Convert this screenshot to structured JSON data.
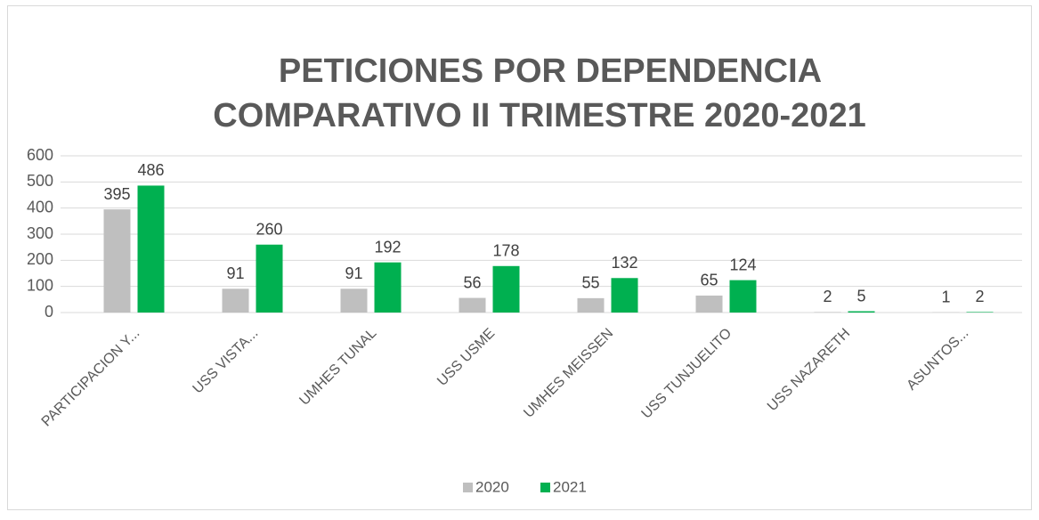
{
  "chart_data": {
    "type": "bar",
    "title": [
      "PETICIONES POR DEPENDENCIA",
      "COMPARATIVO II TRIMESTRE 2020-2021"
    ],
    "categories": [
      "PARTICIPACION Y...",
      "USS VISTA...",
      "UMHES TUNAL",
      "USS USME",
      "UMHES MEISSEN",
      "USS TUNJUELITO",
      "USS NAZARETH",
      "ASUNTOS..."
    ],
    "series": [
      {
        "name": "2020",
        "color": "#bfbfbf",
        "values": [
          395,
          91,
          91,
          56,
          55,
          65,
          2,
          1
        ]
      },
      {
        "name": "2021",
        "color": "#00b050",
        "values": [
          486,
          260,
          192,
          178,
          132,
          124,
          5,
          2
        ]
      }
    ],
    "ylim": [
      0,
      600
    ],
    "yticks": [
      0,
      100,
      200,
      300,
      400,
      500,
      600
    ],
    "grid": true,
    "legend": "bottom"
  }
}
